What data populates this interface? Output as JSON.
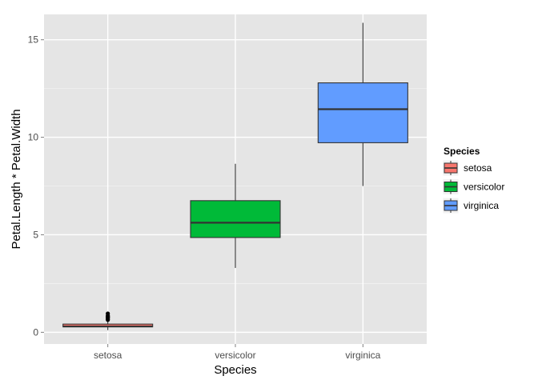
{
  "chart_data": {
    "type": "boxplot",
    "title": "",
    "xlabel": "Species",
    "ylabel": "Petal.Length * Petal.Width",
    "ylim": [
      -0.6,
      16.3
    ],
    "yticks": [
      0,
      5,
      10,
      15
    ],
    "grid": true,
    "legend": {
      "title": "Species",
      "position": "right"
    },
    "categories": [
      "setosa",
      "versicolor",
      "virginica"
    ],
    "series": [
      {
        "name": "setosa",
        "color": "#f8766d",
        "min": 0.11,
        "q1": 0.28,
        "median": 0.3,
        "q3": 0.42,
        "max": 0.6,
        "outliers": [
          0.64,
          0.68,
          0.75,
          0.78,
          0.8,
          0.85,
          0.96
        ]
      },
      {
        "name": "versicolor",
        "color": "#00ba38",
        "min": 3.3,
        "q1": 4.86,
        "median": 5.62,
        "q3": 6.75,
        "max": 8.64,
        "outliers": []
      },
      {
        "name": "virginica",
        "color": "#619cff",
        "min": 7.5,
        "q1": 9.72,
        "median": 11.44,
        "q3": 12.79,
        "max": 15.87,
        "outliers": []
      }
    ]
  }
}
